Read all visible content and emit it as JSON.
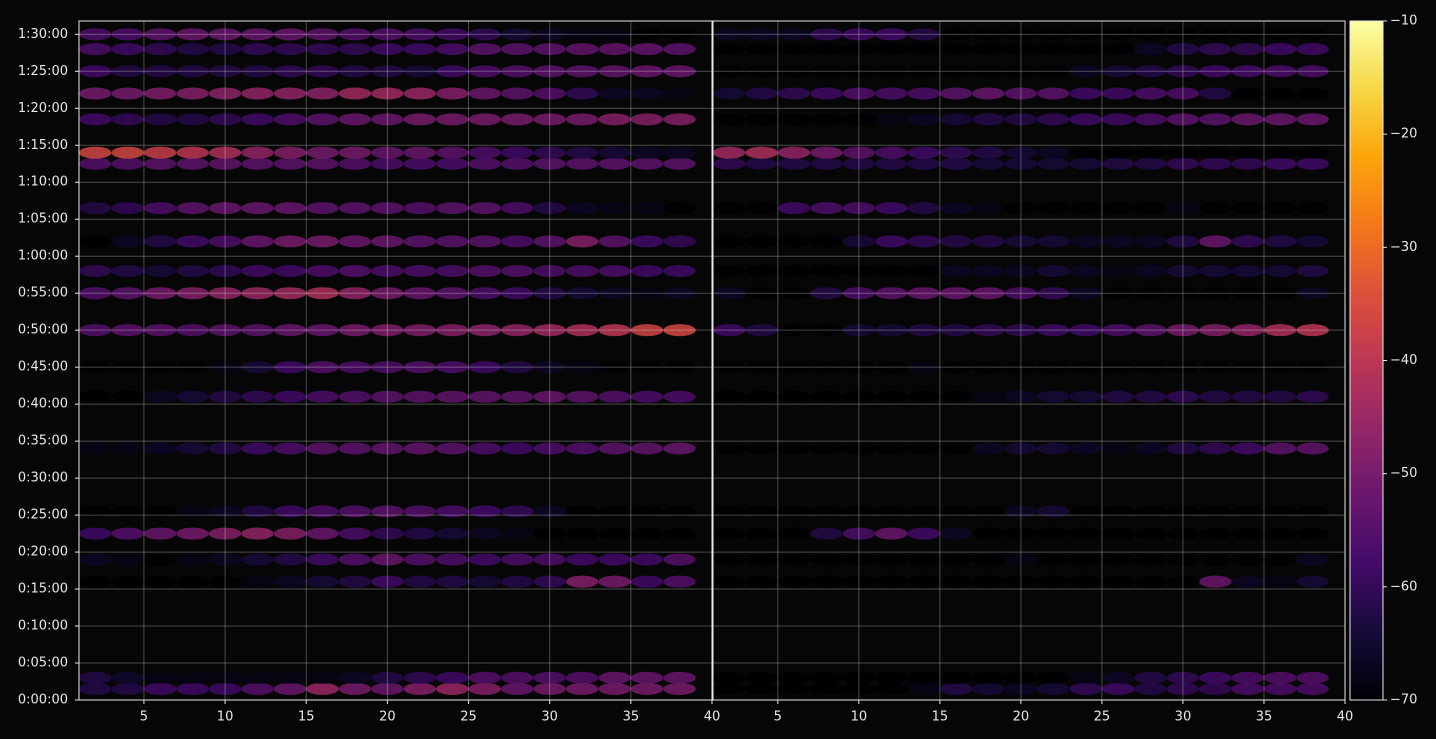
{
  "chart_data": {
    "type": "heatmap",
    "colormap": "inferno",
    "grid": true,
    "x": [
      2,
      4,
      6,
      8,
      10,
      12,
      14,
      16,
      18,
      20,
      22,
      24,
      26,
      28,
      30,
      32,
      34,
      36,
      38
    ],
    "y": [
      1.5,
      3,
      16,
      19,
      22.5,
      25.5,
      34,
      41,
      45,
      50,
      55,
      58,
      62,
      66.5,
      72.5,
      74,
      78.5,
      82,
      85,
      88,
      90
    ],
    "ylim": [
      0,
      91.8
    ],
    "yticks": [
      {
        "value": 0,
        "label": "0:00:00"
      },
      {
        "value": 5,
        "label": "0:05:00"
      },
      {
        "value": 10,
        "label": "0:10:00"
      },
      {
        "value": 15,
        "label": "0:15:00"
      },
      {
        "value": 20,
        "label": "0:20:00"
      },
      {
        "value": 25,
        "label": "0:25:00"
      },
      {
        "value": 30,
        "label": "0:30:00"
      },
      {
        "value": 35,
        "label": "0:35:00"
      },
      {
        "value": 40,
        "label": "0:40:00"
      },
      {
        "value": 45,
        "label": "0:45:00"
      },
      {
        "value": 50,
        "label": "0:50:00"
      },
      {
        "value": 55,
        "label": "0:55:00"
      },
      {
        "value": 60,
        "label": "1:00:00"
      },
      {
        "value": 65,
        "label": "1:05:00"
      },
      {
        "value": 70,
        "label": "1:10:00"
      },
      {
        "value": 75,
        "label": "1:15:00"
      },
      {
        "value": 80,
        "label": "1:20:00"
      },
      {
        "value": 85,
        "label": "1:25:00"
      },
      {
        "value": 90,
        "label": "1:30:00"
      }
    ],
    "clim": [
      -70,
      -10
    ],
    "cticks": [
      {
        "value": -70,
        "label": "−70"
      },
      {
        "value": -60,
        "label": "−60"
      },
      {
        "value": -50,
        "label": "−50"
      },
      {
        "value": -40,
        "label": "−40"
      },
      {
        "value": -30,
        "label": "−30"
      },
      {
        "value": -20,
        "label": "−20"
      },
      {
        "value": -10,
        "label": "−10"
      }
    ],
    "panels": [
      {
        "xlim": [
          1,
          40
        ],
        "xticks": [
          5,
          10,
          15,
          20,
          25,
          30,
          35,
          40
        ],
        "values": [
          [
            -62,
            -62,
            -58,
            -58,
            -58,
            -55,
            -52,
            -45,
            -50,
            -52,
            -48,
            -45,
            -48,
            -52,
            -50,
            -50,
            -50,
            -50,
            -50
          ],
          [
            -62,
            -65,
            -68,
            -68,
            -68,
            -68,
            -68,
            -68,
            -66,
            -62,
            -60,
            -58,
            -55,
            -55,
            -55,
            -55,
            -52,
            -52,
            -52
          ],
          [
            -70,
            -70,
            -70,
            -70,
            -70,
            -68,
            -66,
            -64,
            -62,
            -58,
            -62,
            -62,
            -64,
            -62,
            -60,
            -48,
            -50,
            -58,
            -55
          ],
          [
            -66,
            -68,
            -70,
            -68,
            -66,
            -64,
            -62,
            -58,
            -55,
            -52,
            -55,
            -56,
            -58,
            -56,
            -56,
            -58,
            -58,
            -58,
            -55
          ],
          [
            -58,
            -55,
            -52,
            -50,
            -48,
            -46,
            -48,
            -52,
            -56,
            -60,
            -62,
            -64,
            -66,
            -68,
            -70,
            -70,
            -70,
            -70,
            -70
          ],
          [
            -70,
            -70,
            -70,
            -68,
            -66,
            -62,
            -58,
            -56,
            -55,
            -54,
            -55,
            -56,
            -58,
            -60,
            -66,
            -70,
            -70,
            -70,
            -70
          ],
          [
            -68,
            -68,
            -66,
            -64,
            -62,
            -58,
            -56,
            -54,
            -54,
            -53,
            -53,
            -54,
            -56,
            -58,
            -56,
            -55,
            -54,
            -53,
            -52
          ],
          [
            -70,
            -70,
            -66,
            -64,
            -62,
            -60,
            -58,
            -56,
            -55,
            -54,
            -54,
            -53,
            -53,
            -53,
            -52,
            -54,
            -55,
            -56,
            -56
          ],
          [
            -70,
            -70,
            -70,
            -70,
            -68,
            -64,
            -58,
            -55,
            -56,
            -56,
            -55,
            -56,
            -58,
            -62,
            -66,
            -68,
            -70,
            -70,
            -70
          ],
          [
            -55,
            -54,
            -54,
            -55,
            -54,
            -54,
            -52,
            -52,
            -50,
            -49,
            -49,
            -48,
            -47,
            -46,
            -44,
            -42,
            -40,
            -37,
            -36
          ],
          [
            -55,
            -54,
            -50,
            -48,
            -46,
            -45,
            -44,
            -42,
            -46,
            -50,
            -52,
            -54,
            -56,
            -58,
            -62,
            -64,
            -66,
            -68,
            -66
          ],
          [
            -60,
            -62,
            -64,
            -62,
            -60,
            -58,
            -58,
            -56,
            -55,
            -56,
            -56,
            -56,
            -55,
            -55,
            -56,
            -56,
            -56,
            -58,
            -58
          ],
          [
            -70,
            -66,
            -62,
            -58,
            -56,
            -52,
            -50,
            -50,
            -52,
            -52,
            -54,
            -54,
            -54,
            -56,
            -54,
            -48,
            -54,
            -58,
            -60
          ],
          [
            -62,
            -60,
            -56,
            -54,
            -52,
            -52,
            -52,
            -54,
            -54,
            -54,
            -55,
            -54,
            -54,
            -56,
            -62,
            -66,
            -68,
            -68,
            -70
          ],
          [
            -55,
            -55,
            -54,
            -54,
            -53,
            -54,
            -54,
            -54,
            -55,
            -56,
            -56,
            -56,
            -55,
            -55,
            -54,
            -54,
            -54,
            -54,
            -54
          ],
          [
            -36,
            -36,
            -38,
            -40,
            -42,
            -46,
            -48,
            -50,
            -50,
            -52,
            -52,
            -54,
            -56,
            -58,
            -60,
            -62,
            -64,
            -66,
            -66
          ],
          [
            -58,
            -60,
            -62,
            -62,
            -60,
            -58,
            -56,
            -54,
            -52,
            -52,
            -50,
            -50,
            -50,
            -50,
            -50,
            -50,
            -48,
            -48,
            -48
          ],
          [
            -50,
            -50,
            -49,
            -48,
            -47,
            -46,
            -46,
            -47,
            -44,
            -44,
            -45,
            -48,
            -52,
            -54,
            -55,
            -60,
            -66,
            -66,
            -68
          ],
          [
            -58,
            -62,
            -62,
            -62,
            -62,
            -62,
            -60,
            -60,
            -62,
            -62,
            -64,
            -58,
            -56,
            -55,
            -54,
            -54,
            -53,
            -52,
            -52
          ],
          [
            -56,
            -58,
            -60,
            -62,
            -62,
            -60,
            -60,
            -60,
            -60,
            -58,
            -58,
            -56,
            -54,
            -54,
            -54,
            -53,
            -53,
            -53,
            -54
          ],
          [
            -56,
            -56,
            -54,
            -52,
            -52,
            -52,
            -52,
            -54,
            -55,
            -55,
            -56,
            -58,
            -60,
            -64,
            -66,
            -68,
            -68,
            -70,
            -70
          ]
        ]
      },
      {
        "xlim": [
          1,
          40
        ],
        "xticks": [
          5,
          10,
          15,
          20,
          25,
          30,
          35,
          40
        ],
        "values": [
          [
            -70,
            -70,
            -70,
            -70,
            -70,
            -70,
            -68,
            -62,
            -64,
            -66,
            -64,
            -60,
            -58,
            -62,
            -60,
            -60,
            -56,
            -56,
            -56
          ],
          [
            -70,
            -70,
            -70,
            -70,
            -70,
            -70,
            -70,
            -70,
            -70,
            -70,
            -70,
            -68,
            -66,
            -62,
            -60,
            -58,
            -56,
            -55,
            -55
          ],
          [
            -70,
            -70,
            -70,
            -70,
            -70,
            -70,
            -70,
            -70,
            -70,
            -70,
            -70,
            -70,
            -70,
            -70,
            -70,
            -52,
            -66,
            -68,
            -64
          ],
          [
            -70,
            -70,
            -70,
            -70,
            -70,
            -70,
            -70,
            -70,
            -70,
            -68,
            -70,
            -70,
            -70,
            -70,
            -70,
            -70,
            -70,
            -70,
            -66
          ],
          [
            -70,
            -70,
            -70,
            -62,
            -56,
            -52,
            -58,
            -66,
            -70,
            -70,
            -70,
            -70,
            -70,
            -70,
            -70,
            -70,
            -70,
            -70,
            -70
          ],
          [
            -70,
            -70,
            -70,
            -70,
            -70,
            -70,
            -70,
            -70,
            -70,
            -66,
            -64,
            -70,
            -70,
            -70,
            -70,
            -70,
            -70,
            -70,
            -70
          ],
          [
            -70,
            -70,
            -70,
            -70,
            -70,
            -70,
            -70,
            -70,
            -66,
            -64,
            -64,
            -66,
            -68,
            -66,
            -62,
            -60,
            -58,
            -54,
            -53
          ],
          [
            -70,
            -70,
            -70,
            -70,
            -70,
            -70,
            -70,
            -70,
            -68,
            -66,
            -64,
            -64,
            -62,
            -62,
            -60,
            -62,
            -62,
            -62,
            -60
          ],
          [
            -70,
            -70,
            -70,
            -70,
            -70,
            -70,
            -68,
            -70,
            -70,
            -70,
            -70,
            -70,
            -70,
            -70,
            -70,
            -70,
            -70,
            -70,
            -70
          ],
          [
            -58,
            -62,
            -70,
            -70,
            -64,
            -64,
            -62,
            -62,
            -60,
            -60,
            -58,
            -58,
            -56,
            -54,
            -50,
            -48,
            -46,
            -42,
            -40
          ],
          [
            -66,
            -70,
            -70,
            -62,
            -56,
            -54,
            -52,
            -52,
            -52,
            -56,
            -60,
            -66,
            -70,
            -70,
            -70,
            -70,
            -70,
            -70,
            -66
          ],
          [
            -70,
            -70,
            -70,
            -70,
            -70,
            -70,
            -70,
            -66,
            -66,
            -66,
            -64,
            -66,
            -68,
            -66,
            -64,
            -64,
            -64,
            -64,
            -62
          ],
          [
            -70,
            -70,
            -70,
            -70,
            -64,
            -58,
            -60,
            -62,
            -62,
            -64,
            -64,
            -66,
            -66,
            -66,
            -62,
            -52,
            -60,
            -62,
            -64
          ],
          [
            -70,
            -70,
            -58,
            -56,
            -56,
            -58,
            -62,
            -66,
            -68,
            -70,
            -70,
            -70,
            -70,
            -70,
            -68,
            -70,
            -70,
            -70,
            -70
          ],
          [
            -60,
            -62,
            -62,
            -62,
            -62,
            -62,
            -62,
            -62,
            -64,
            -64,
            -64,
            -64,
            -62,
            -62,
            -60,
            -60,
            -60,
            -58,
            -58
          ],
          [
            -44,
            -42,
            -46,
            -50,
            -54,
            -56,
            -58,
            -60,
            -62,
            -64,
            -66,
            -70,
            -70,
            -70,
            -70,
            -70,
            -70,
            -70,
            -70
          ],
          [
            -70,
            -70,
            -70,
            -70,
            -70,
            -68,
            -66,
            -64,
            -62,
            -62,
            -60,
            -58,
            -58,
            -56,
            -54,
            -54,
            -52,
            -52,
            -52
          ],
          [
            -64,
            -62,
            -60,
            -58,
            -55,
            -56,
            -56,
            -54,
            -52,
            -54,
            -54,
            -58,
            -58,
            -56,
            -56,
            -62,
            -70,
            -70,
            -70
          ],
          [
            -70,
            -70,
            -70,
            -70,
            -70,
            -70,
            -70,
            -70,
            -70,
            -70,
            -70,
            -66,
            -64,
            -62,
            -60,
            -58,
            -57,
            -56,
            -56
          ],
          [
            -70,
            -70,
            -70,
            -70,
            -70,
            -70,
            -70,
            -70,
            -70,
            -70,
            -70,
            -70,
            -70,
            -66,
            -62,
            -60,
            -60,
            -58,
            -58
          ],
          [
            -66,
            -66,
            -66,
            -60,
            -58,
            -58,
            -62,
            -70,
            -70,
            -70,
            -70,
            -70,
            -70,
            -70,
            -70,
            -70,
            -70,
            -70,
            -70
          ]
        ]
      }
    ]
  }
}
